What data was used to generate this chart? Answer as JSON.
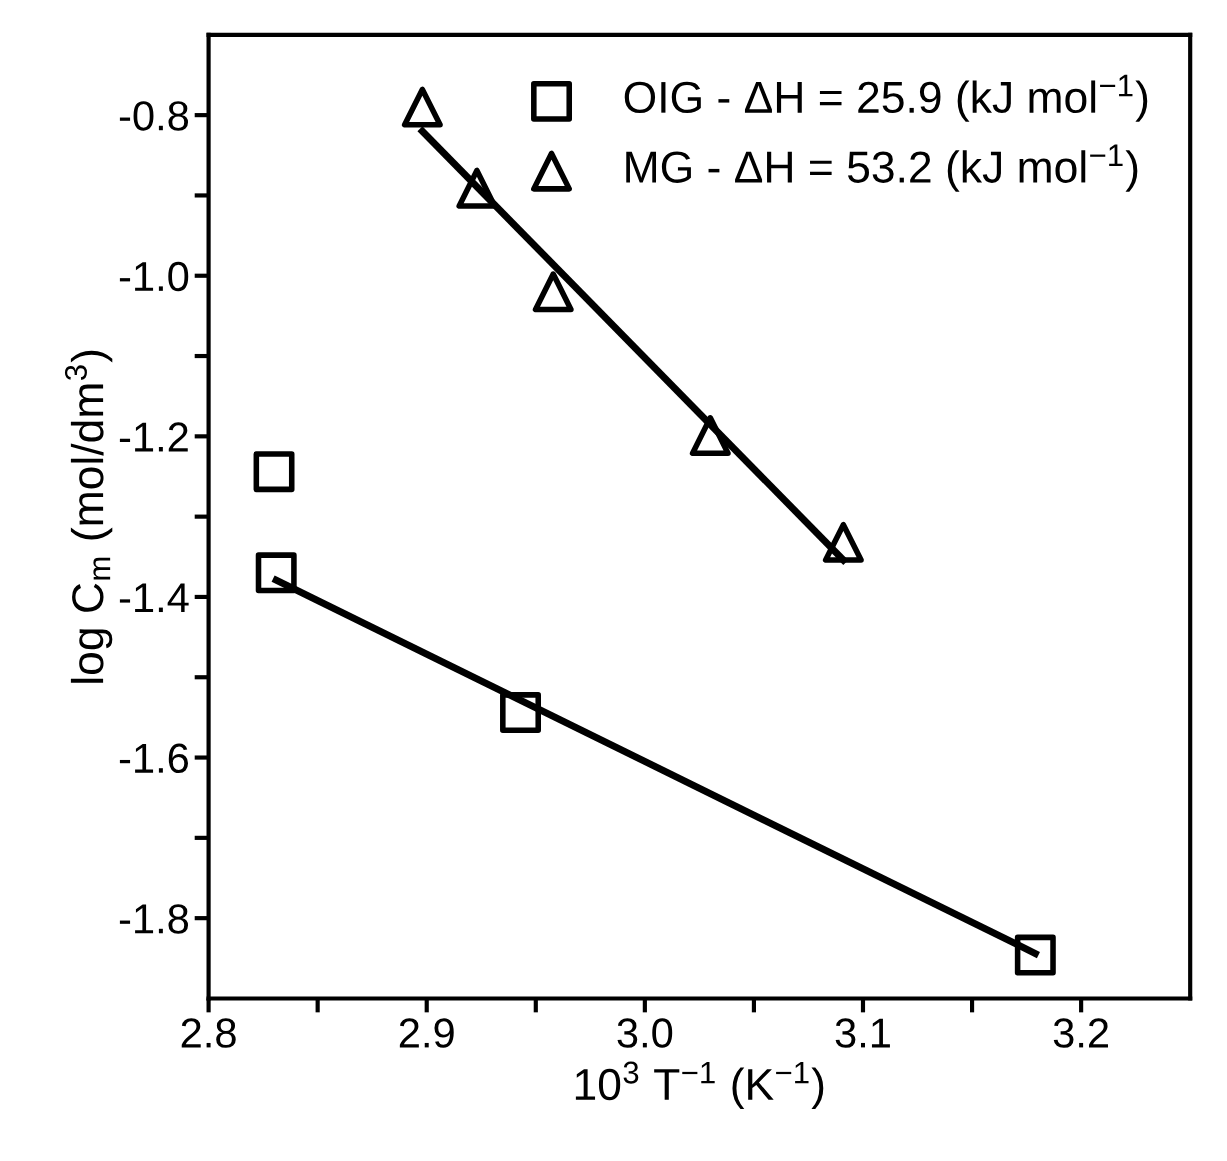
{
  "chart_data": {
    "type": "scatter",
    "xlabel": "10$^{3}$ T$^{−1}$ (K$^{−1}$)",
    "ylabel": "log C$_{m}$ (mol/dm$^{3}$)",
    "xlim": [
      2.8,
      3.25
    ],
    "ylim": [
      -1.9,
      -0.7
    ],
    "xticks": [
      2.8,
      {
        "value": 2.85,
        "label": null
      },
      2.9,
      {
        "value": 2.95,
        "label": null
      },
      {
        "value": 3.0,
        "label": "3.0"
      },
      {
        "value": 3.05,
        "label": null
      },
      3.1,
      {
        "value": 3.15,
        "label": null
      },
      3.2
    ],
    "yticks": [
      {
        "value": -1.8,
        "label": "-1.8"
      },
      {
        "value": -1.7,
        "label": null
      },
      {
        "value": -1.6,
        "label": "-1.6"
      },
      {
        "value": -1.5,
        "label": null
      },
      {
        "value": -1.4,
        "label": "-1.4"
      },
      {
        "value": -1.3,
        "label": null
      },
      {
        "value": -1.2,
        "label": "-1.2"
      },
      {
        "value": -1.1,
        "label": null
      },
      {
        "value": -1.0,
        "label": "-1.0"
      },
      {
        "value": -0.9,
        "label": null
      },
      {
        "value": -0.8,
        "label": "-0.8"
      }
    ],
    "grid": false,
    "legend": "top right",
    "series": [
      {
        "name": "OIG - ΔH = 25.9 (kJ mol$^{−1}$)",
        "marker": "square",
        "color": "#000000",
        "x": [
          2.83,
          2.831,
          2.943,
          3.179
        ],
        "values": [
          -1.244,
          -1.37,
          -1.544,
          -1.846
        ]
      },
      {
        "name": "MG - ΔH = 53.2 (kJ mol$^{−1}$)",
        "marker": "triangle",
        "color": "#000000",
        "x": [
          2.898,
          2.923,
          2.958,
          3.03,
          3.091
        ],
        "values": [
          -0.79,
          -0.891,
          -1.02,
          -1.199,
          -1.332
        ]
      },
      {
        "type": "line",
        "color": "#000000",
        "line_style": "solid",
        "x": [
          2.831,
          3.179
        ],
        "values": [
          -1.379,
          -1.844
        ]
      },
      {
        "type": "line",
        "color": "#000000",
        "line_style": "solid",
        "x": [
          2.898,
          3.091
        ],
        "values": [
          -0.82,
          -1.354
        ]
      }
    ]
  }
}
